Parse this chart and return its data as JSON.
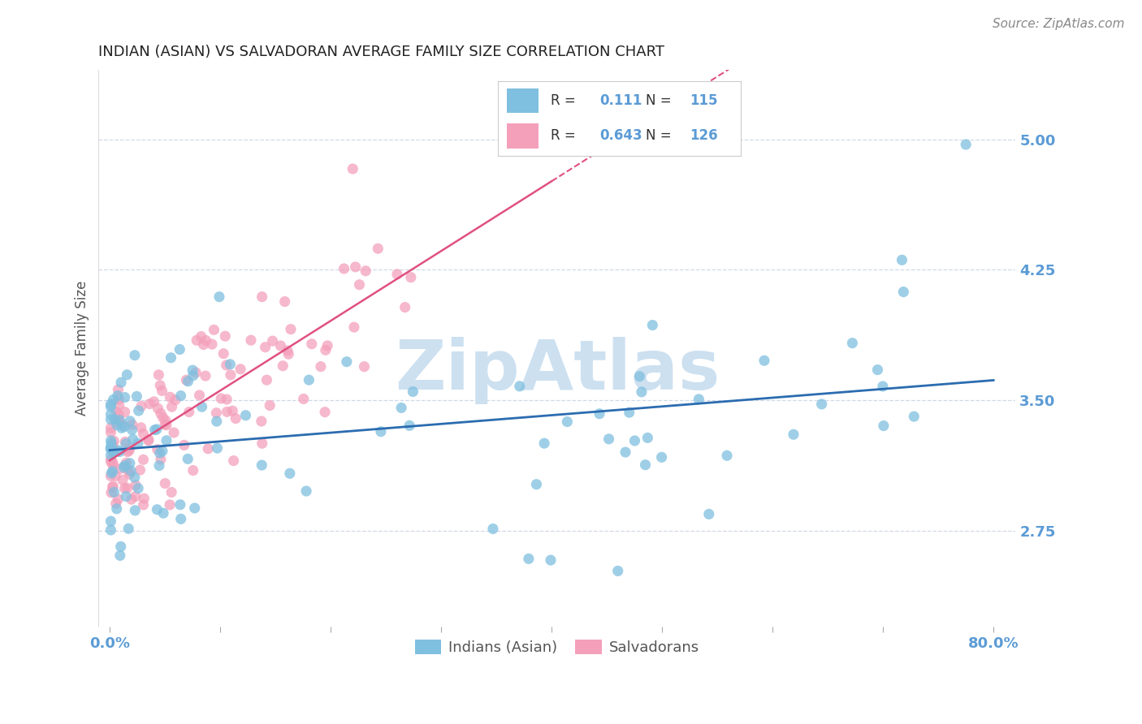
{
  "title": "INDIAN (ASIAN) VS SALVADORAN AVERAGE FAMILY SIZE CORRELATION CHART",
  "source": "Source: ZipAtlas.com",
  "ylabel": "Average Family Size",
  "watermark": "ZipAtlas",
  "xlim": [
    -0.01,
    0.82
  ],
  "ylim": [
    2.2,
    5.4
  ],
  "yticks": [
    2.75,
    3.5,
    4.25,
    5.0
  ],
  "xticks": [
    0.0,
    0.1,
    0.2,
    0.3,
    0.4,
    0.5,
    0.6,
    0.7,
    0.8
  ],
  "xtick_labels": [
    "0.0%",
    "",
    "",
    "",
    "",
    "",
    "",
    "",
    "80.0%"
  ],
  "legend_indian_r": "0.111",
  "legend_indian_n": "115",
  "legend_salvador_r": "0.643",
  "legend_salvador_n": "126",
  "indian_color": "#7fbfdf",
  "salvador_color": "#f4a0bb",
  "indian_line_color": "#2b6cb0",
  "salvador_line_color": "#e05080",
  "grid_color": "#d0d8e8",
  "title_color": "#222222",
  "axis_label_color": "#5b9bd5",
  "watermark_color": "#cce0f0",
  "title_fontsize": 13,
  "source_fontsize": 11,
  "ytick_fontsize": 13,
  "xtick_fontsize": 13,
  "ylabel_fontsize": 12
}
